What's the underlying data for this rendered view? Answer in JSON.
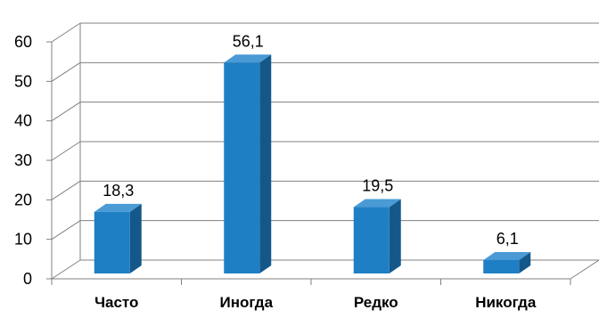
{
  "chart_data": {
    "type": "bar",
    "title": "",
    "categories": [
      "Часто",
      "Иногда",
      "Редко",
      "Никогда"
    ],
    "values": [
      18.3,
      56.1,
      19.5,
      6.1
    ],
    "data_labels": [
      "18,3",
      "56,1",
      "19,5",
      "6,1"
    ],
    "y_ticks": [
      "0",
      "10",
      "20",
      "30",
      "40",
      "50",
      "60"
    ],
    "ylim": [
      0,
      60
    ],
    "xlabel": "",
    "ylabel": "",
    "grid": true,
    "three_d": true,
    "colors": {
      "bar_front": "#1f7fc4",
      "bar_side": "#14588a",
      "bar_top": "#4a9ad6",
      "grid": "#808080"
    }
  }
}
